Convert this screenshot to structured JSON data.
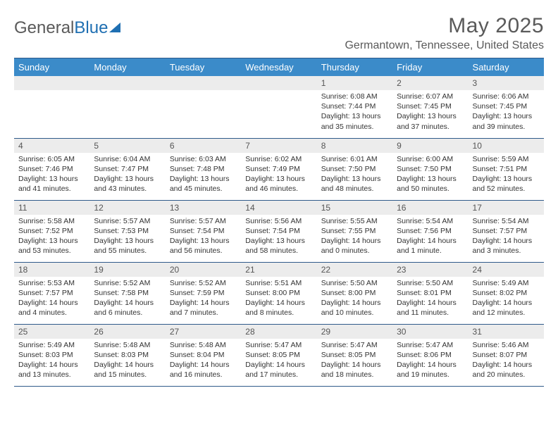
{
  "logo": {
    "part1": "General",
    "part2": "Blue"
  },
  "title": "May 2025",
  "location": "Germantown, Tennessee, United States",
  "colors": {
    "header_bg": "#3b8bc9",
    "daynum_bg": "#ececec",
    "rule": "#2f5a8a",
    "text": "#333333",
    "title_text": "#5a5a5a"
  },
  "weekdays": [
    "Sunday",
    "Monday",
    "Tuesday",
    "Wednesday",
    "Thursday",
    "Friday",
    "Saturday"
  ],
  "weeks": [
    [
      {
        "n": "",
        "sr": "",
        "ss": "",
        "dl": ""
      },
      {
        "n": "",
        "sr": "",
        "ss": "",
        "dl": ""
      },
      {
        "n": "",
        "sr": "",
        "ss": "",
        "dl": ""
      },
      {
        "n": "",
        "sr": "",
        "ss": "",
        "dl": ""
      },
      {
        "n": "1",
        "sr": "Sunrise: 6:08 AM",
        "ss": "Sunset: 7:44 PM",
        "dl": "Daylight: 13 hours and 35 minutes."
      },
      {
        "n": "2",
        "sr": "Sunrise: 6:07 AM",
        "ss": "Sunset: 7:45 PM",
        "dl": "Daylight: 13 hours and 37 minutes."
      },
      {
        "n": "3",
        "sr": "Sunrise: 6:06 AM",
        "ss": "Sunset: 7:45 PM",
        "dl": "Daylight: 13 hours and 39 minutes."
      }
    ],
    [
      {
        "n": "4",
        "sr": "Sunrise: 6:05 AM",
        "ss": "Sunset: 7:46 PM",
        "dl": "Daylight: 13 hours and 41 minutes."
      },
      {
        "n": "5",
        "sr": "Sunrise: 6:04 AM",
        "ss": "Sunset: 7:47 PM",
        "dl": "Daylight: 13 hours and 43 minutes."
      },
      {
        "n": "6",
        "sr": "Sunrise: 6:03 AM",
        "ss": "Sunset: 7:48 PM",
        "dl": "Daylight: 13 hours and 45 minutes."
      },
      {
        "n": "7",
        "sr": "Sunrise: 6:02 AM",
        "ss": "Sunset: 7:49 PM",
        "dl": "Daylight: 13 hours and 46 minutes."
      },
      {
        "n": "8",
        "sr": "Sunrise: 6:01 AM",
        "ss": "Sunset: 7:50 PM",
        "dl": "Daylight: 13 hours and 48 minutes."
      },
      {
        "n": "9",
        "sr": "Sunrise: 6:00 AM",
        "ss": "Sunset: 7:50 PM",
        "dl": "Daylight: 13 hours and 50 minutes."
      },
      {
        "n": "10",
        "sr": "Sunrise: 5:59 AM",
        "ss": "Sunset: 7:51 PM",
        "dl": "Daylight: 13 hours and 52 minutes."
      }
    ],
    [
      {
        "n": "11",
        "sr": "Sunrise: 5:58 AM",
        "ss": "Sunset: 7:52 PM",
        "dl": "Daylight: 13 hours and 53 minutes."
      },
      {
        "n": "12",
        "sr": "Sunrise: 5:57 AM",
        "ss": "Sunset: 7:53 PM",
        "dl": "Daylight: 13 hours and 55 minutes."
      },
      {
        "n": "13",
        "sr": "Sunrise: 5:57 AM",
        "ss": "Sunset: 7:54 PM",
        "dl": "Daylight: 13 hours and 56 minutes."
      },
      {
        "n": "14",
        "sr": "Sunrise: 5:56 AM",
        "ss": "Sunset: 7:54 PM",
        "dl": "Daylight: 13 hours and 58 minutes."
      },
      {
        "n": "15",
        "sr": "Sunrise: 5:55 AM",
        "ss": "Sunset: 7:55 PM",
        "dl": "Daylight: 14 hours and 0 minutes."
      },
      {
        "n": "16",
        "sr": "Sunrise: 5:54 AM",
        "ss": "Sunset: 7:56 PM",
        "dl": "Daylight: 14 hours and 1 minute."
      },
      {
        "n": "17",
        "sr": "Sunrise: 5:54 AM",
        "ss": "Sunset: 7:57 PM",
        "dl": "Daylight: 14 hours and 3 minutes."
      }
    ],
    [
      {
        "n": "18",
        "sr": "Sunrise: 5:53 AM",
        "ss": "Sunset: 7:57 PM",
        "dl": "Daylight: 14 hours and 4 minutes."
      },
      {
        "n": "19",
        "sr": "Sunrise: 5:52 AM",
        "ss": "Sunset: 7:58 PM",
        "dl": "Daylight: 14 hours and 6 minutes."
      },
      {
        "n": "20",
        "sr": "Sunrise: 5:52 AM",
        "ss": "Sunset: 7:59 PM",
        "dl": "Daylight: 14 hours and 7 minutes."
      },
      {
        "n": "21",
        "sr": "Sunrise: 5:51 AM",
        "ss": "Sunset: 8:00 PM",
        "dl": "Daylight: 14 hours and 8 minutes."
      },
      {
        "n": "22",
        "sr": "Sunrise: 5:50 AM",
        "ss": "Sunset: 8:00 PM",
        "dl": "Daylight: 14 hours and 10 minutes."
      },
      {
        "n": "23",
        "sr": "Sunrise: 5:50 AM",
        "ss": "Sunset: 8:01 PM",
        "dl": "Daylight: 14 hours and 11 minutes."
      },
      {
        "n": "24",
        "sr": "Sunrise: 5:49 AM",
        "ss": "Sunset: 8:02 PM",
        "dl": "Daylight: 14 hours and 12 minutes."
      }
    ],
    [
      {
        "n": "25",
        "sr": "Sunrise: 5:49 AM",
        "ss": "Sunset: 8:03 PM",
        "dl": "Daylight: 14 hours and 13 minutes."
      },
      {
        "n": "26",
        "sr": "Sunrise: 5:48 AM",
        "ss": "Sunset: 8:03 PM",
        "dl": "Daylight: 14 hours and 15 minutes."
      },
      {
        "n": "27",
        "sr": "Sunrise: 5:48 AM",
        "ss": "Sunset: 8:04 PM",
        "dl": "Daylight: 14 hours and 16 minutes."
      },
      {
        "n": "28",
        "sr": "Sunrise: 5:47 AM",
        "ss": "Sunset: 8:05 PM",
        "dl": "Daylight: 14 hours and 17 minutes."
      },
      {
        "n": "29",
        "sr": "Sunrise: 5:47 AM",
        "ss": "Sunset: 8:05 PM",
        "dl": "Daylight: 14 hours and 18 minutes."
      },
      {
        "n": "30",
        "sr": "Sunrise: 5:47 AM",
        "ss": "Sunset: 8:06 PM",
        "dl": "Daylight: 14 hours and 19 minutes."
      },
      {
        "n": "31",
        "sr": "Sunrise: 5:46 AM",
        "ss": "Sunset: 8:07 PM",
        "dl": "Daylight: 14 hours and 20 minutes."
      }
    ]
  ]
}
